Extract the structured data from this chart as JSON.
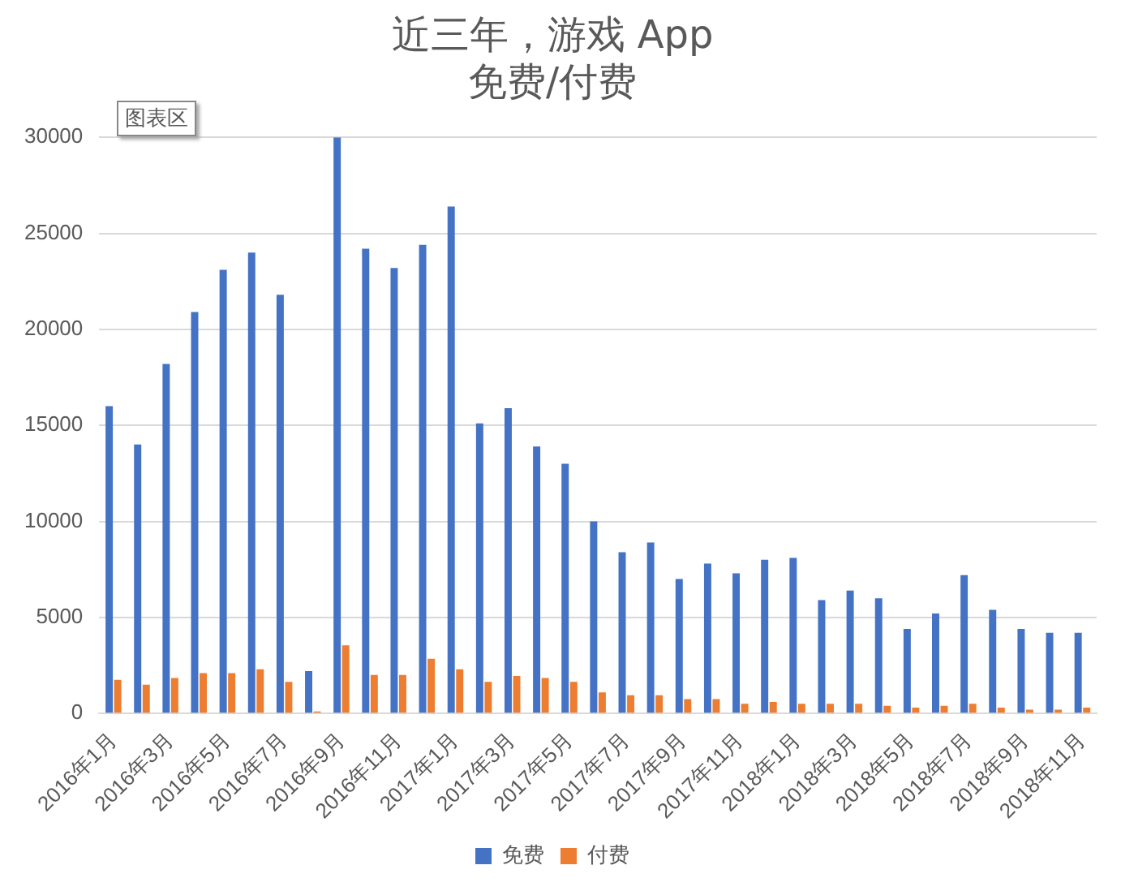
{
  "chart_data": {
    "type": "bar",
    "title": "近三年，游戏 App\n免费/付费",
    "annotations": [
      "图表区"
    ],
    "categories": [
      "2016年1月",
      null,
      "2016年3月",
      null,
      "2016年5月",
      null,
      "2016年7月",
      null,
      "2016年9月",
      null,
      "2016年11月",
      null,
      "2017年1月",
      null,
      "2017年3月",
      null,
      "2017年5月",
      null,
      "2017年7月",
      null,
      "2017年9月",
      null,
      "2017年11月",
      null,
      "2018年1月",
      null,
      "2018年3月",
      null,
      "2018年5月",
      null,
      "2018年7月",
      null,
      "2018年9月",
      null,
      "2018年11月"
    ],
    "series": [
      {
        "name": "免费",
        "color": "#4472c4",
        "values": [
          16000,
          14000,
          18200,
          20900,
          23100,
          24000,
          21800,
          2200,
          30000,
          24200,
          23200,
          24400,
          26400,
          15100,
          15900,
          13900,
          13000,
          10000,
          8400,
          8900,
          7000,
          7800,
          7300,
          8000,
          8100,
          5900,
          6400,
          6000,
          4400,
          5200,
          7200,
          5400,
          4400,
          4200,
          4200
        ]
      },
      {
        "name": "付费",
        "color": "#ed7d31",
        "values": [
          1750,
          1500,
          1850,
          2100,
          2100,
          2300,
          1650,
          100,
          3550,
          2000,
          2000,
          2850,
          2300,
          1650,
          1950,
          1850,
          1650,
          1100,
          950,
          950,
          750,
          750,
          500,
          600,
          500,
          500,
          500,
          400,
          300,
          400,
          500,
          300,
          200,
          200,
          300
        ]
      }
    ],
    "ylim": [
      0,
      30000
    ],
    "yticks": [
      0,
      5000,
      10000,
      15000,
      20000,
      25000,
      30000
    ],
    "grid": "y",
    "legend": "bottom"
  }
}
